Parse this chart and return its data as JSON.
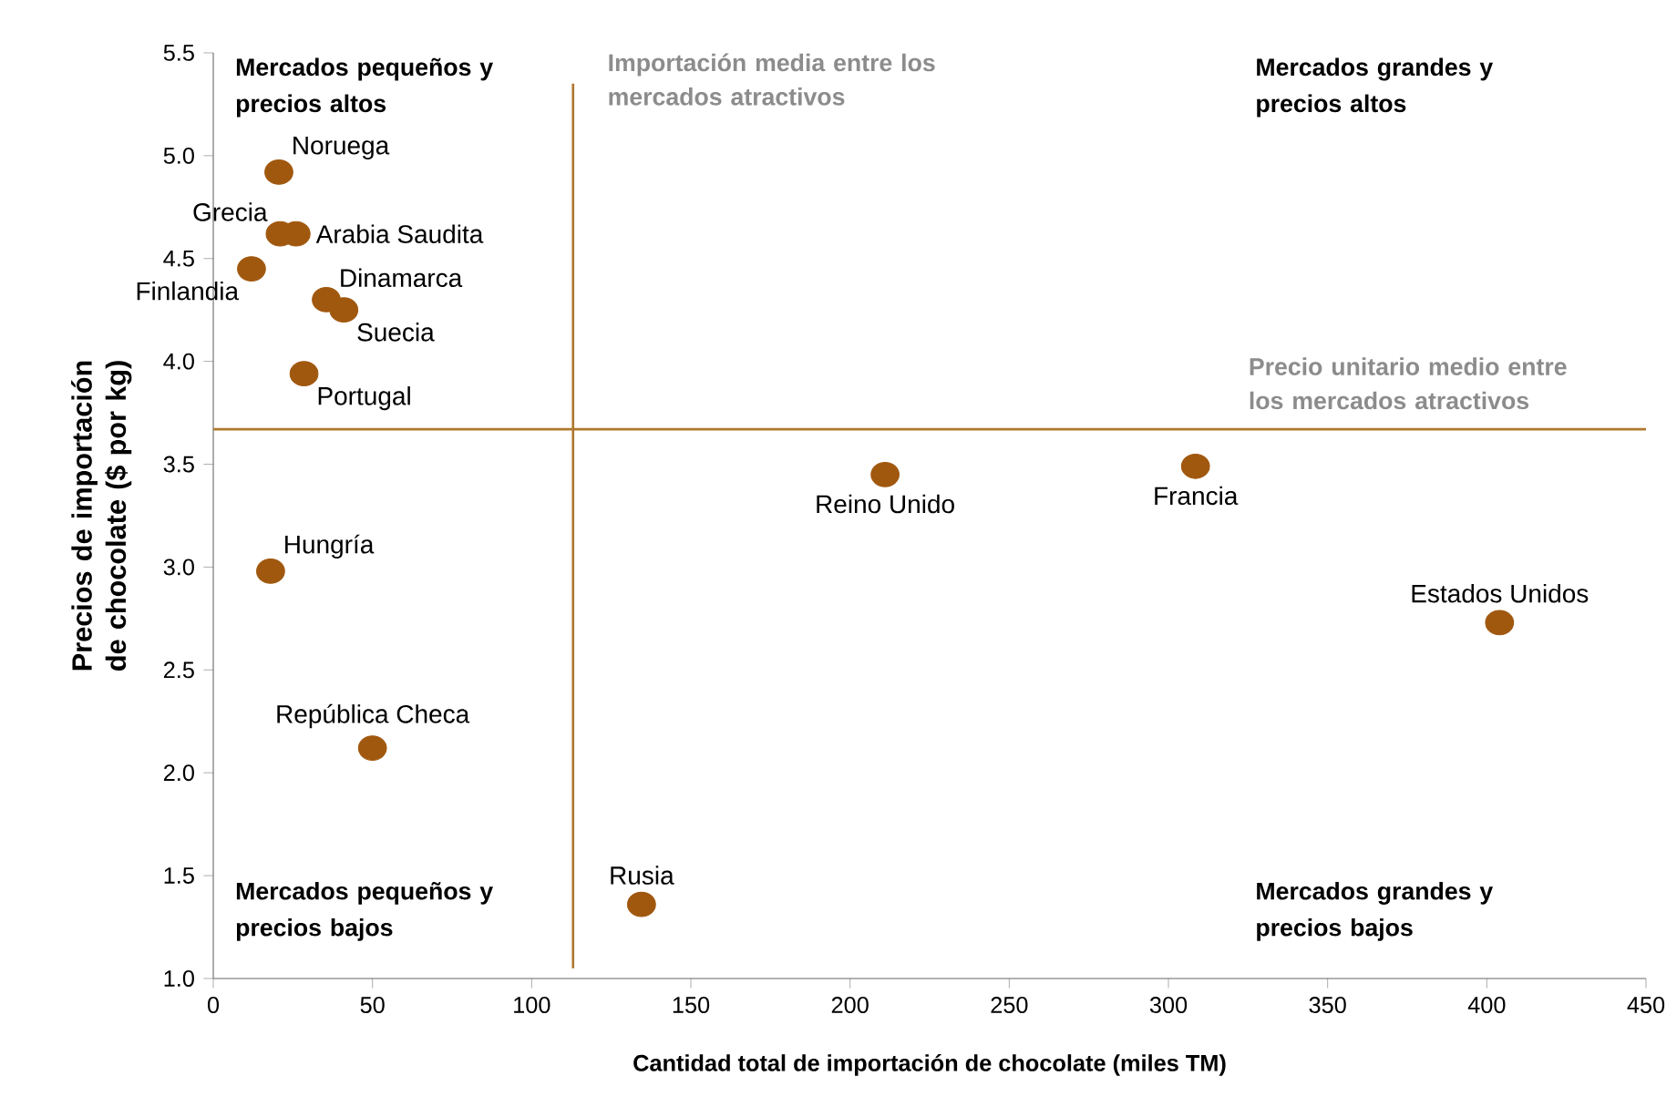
{
  "chart_data": {
    "type": "scatter",
    "xlabel": "Cantidad total de importación de chocolate (miles TM)",
    "ylabel": "Precios de importación de chocolate ($ por kg)",
    "xlim": [
      0,
      450
    ],
    "xticks": [
      0,
      50,
      100,
      150,
      200,
      250,
      300,
      350,
      400,
      450
    ],
    "ylim": [
      1,
      5.5
    ],
    "yticks": [
      {
        "value": 1,
        "label": "1.0"
      },
      1.5,
      {
        "value": 2,
        "label": "2.0"
      },
      2.5,
      {
        "value": 3,
        "label": "3.0"
      },
      3.5,
      {
        "value": 4,
        "label": "4.0"
      },
      4.5,
      {
        "value": 5,
        "label": "5.0"
      },
      5.5
    ],
    "marker": "circle",
    "legend": false,
    "grid": false,
    "series": [
      {
        "name": "Noruega",
        "color": "#a0580f",
        "x": [
          20.6
        ],
        "values": [
          4.92
        ]
      },
      {
        "name": "Grecia",
        "color": "#a0580f",
        "x": [
          21
        ],
        "values": [
          4.62
        ]
      },
      {
        "name": "Arabia Saudita",
        "color": "#a0580f",
        "x": [
          26
        ],
        "values": [
          4.62
        ]
      },
      {
        "name": "Finlandia",
        "color": "#a0580f",
        "x": [
          12
        ],
        "values": [
          4.45
        ]
      },
      {
        "name": "Dinamarca",
        "color": "#a0580f",
        "x": [
          35.5
        ],
        "values": [
          4.3
        ]
      },
      {
        "name": "Suecia",
        "color": "#a0580f",
        "x": [
          41
        ],
        "values": [
          4.25
        ]
      },
      {
        "name": "Portugal",
        "color": "#a0580f",
        "x": [
          28.5
        ],
        "values": [
          3.94
        ]
      },
      {
        "name": "Hungría",
        "color": "#a0580f",
        "x": [
          18
        ],
        "values": [
          2.98
        ]
      },
      {
        "name": "República Checa",
        "color": "#a0580f",
        "x": [
          50
        ],
        "values": [
          2.12
        ]
      },
      {
        "name": "Rusia",
        "color": "#a0580f",
        "x": [
          134.5
        ],
        "values": [
          1.36
        ]
      },
      {
        "name": "Reino Unido",
        "color": "#a0580f",
        "x": [
          211
        ],
        "values": [
          3.45
        ]
      },
      {
        "name": "Francia",
        "color": "#a0580f",
        "x": [
          308.5
        ],
        "values": [
          3.49
        ]
      },
      {
        "name": "Estados Unidos",
        "color": "#a0580f",
        "x": [
          404
        ],
        "values": [
          2.73
        ]
      }
    ],
    "ref_lines": [
      {
        "axis": "x",
        "value": 113,
        "label": "Importación media entre los mercados atractivos",
        "color": "#b07830"
      },
      {
        "axis": "y",
        "value": 3.67,
        "label": "Precio unitario medio entre los mercados atractivos",
        "color": "#b07830"
      }
    ],
    "annotations": [
      "Mercados pequeños y precios altos",
      "Mercados grandes y precios altos",
      "Mercados pequeños y precios bajos",
      "Mercados grandes y precios bajos"
    ]
  }
}
